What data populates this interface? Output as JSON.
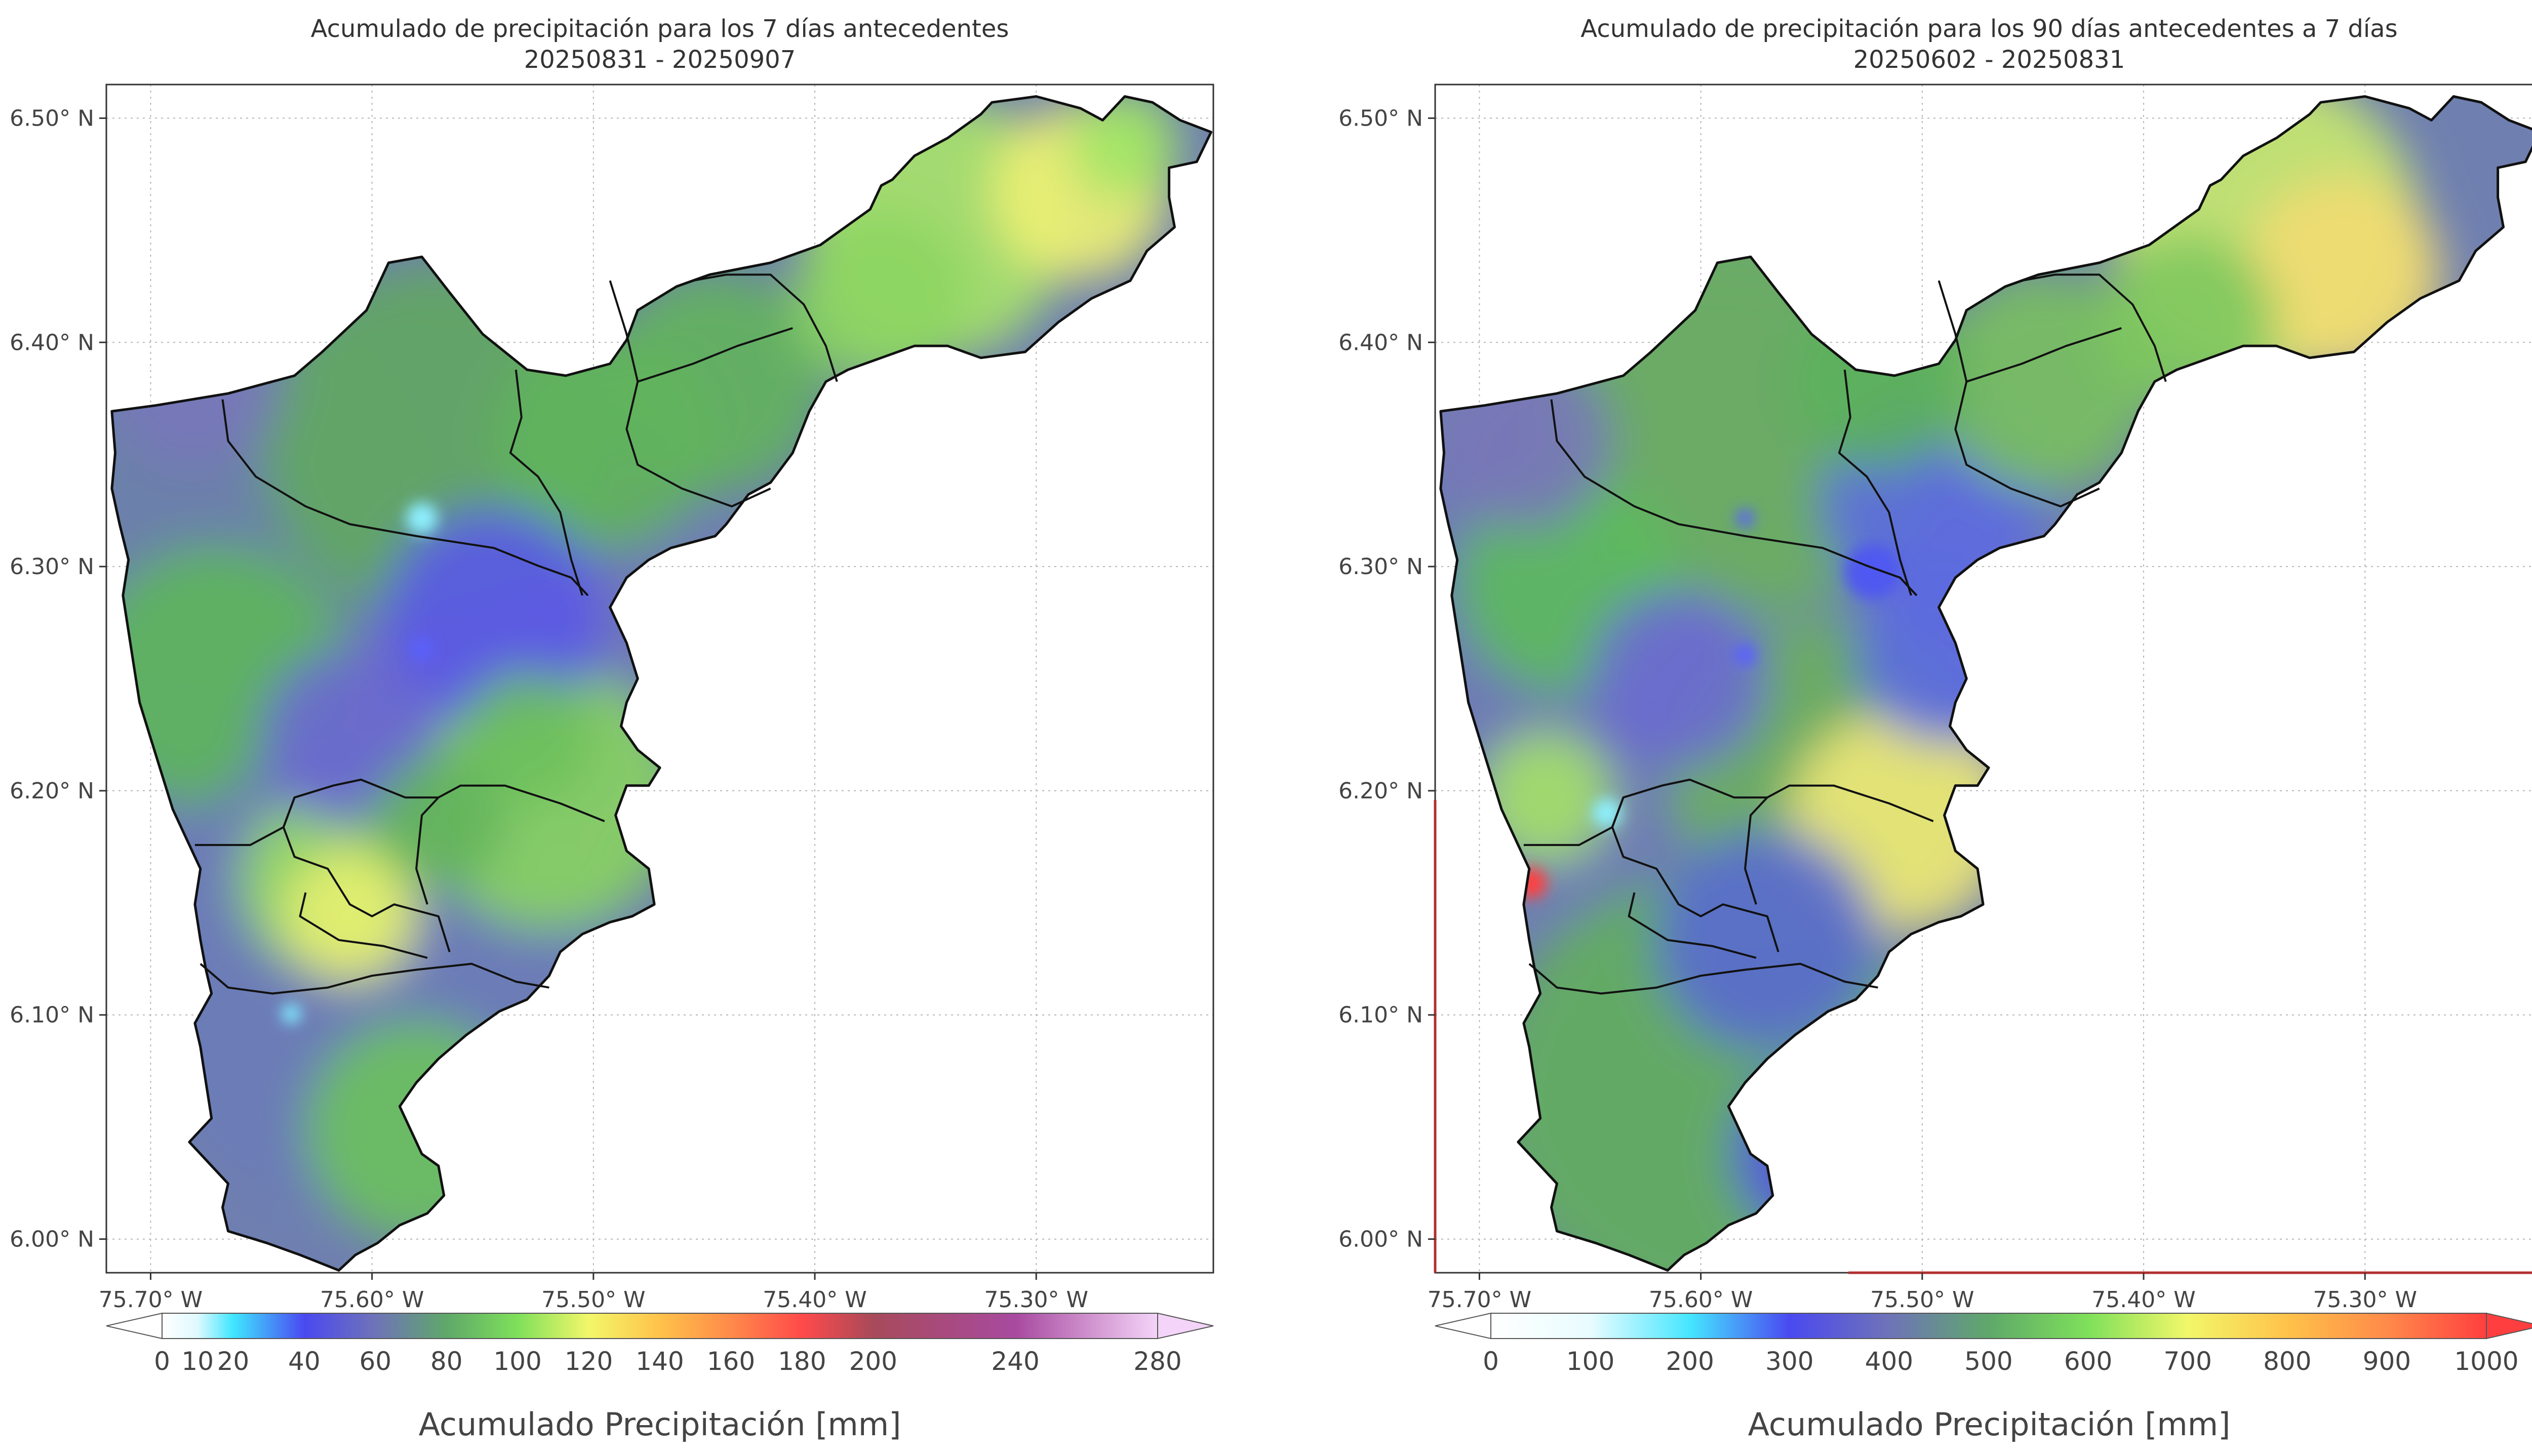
{
  "chart_data": [
    {
      "type": "heatmap",
      "title": "Acumulado de precipitación para los 7 días antecedentes",
      "subtitle": "20250831 - 20250907",
      "x_ticks": [
        "75.70° W",
        "75.60° W",
        "75.50° W",
        "75.40° W",
        "75.30° W"
      ],
      "x_values": [
        -75.7,
        -75.6,
        -75.5,
        -75.4,
        -75.3
      ],
      "y_ticks": [
        "6.50° N",
        "6.40° N",
        "6.30° N",
        "6.20° N",
        "6.10° N",
        "6.00° N"
      ],
      "y_values": [
        6.5,
        6.4,
        6.3,
        6.2,
        6.1,
        6.0
      ],
      "xlim": [
        -75.72,
        -75.22
      ],
      "ylim": [
        5.985,
        6.515
      ],
      "grid": true,
      "colorbar": {
        "label": "Acumulado Precipitación [mm]",
        "ticks": [
          0,
          10,
          20,
          40,
          60,
          80,
          100,
          120,
          140,
          160,
          180,
          200,
          240,
          280
        ],
        "tick_labels": [
          "0",
          "10",
          "20",
          "40",
          "60",
          "80",
          "100",
          "120",
          "140",
          "160",
          "180",
          "200",
          "240",
          "280"
        ],
        "range": [
          0,
          280
        ],
        "extend": "both",
        "stops": [
          {
            "v": 0,
            "c": "#ffffff"
          },
          {
            "v": 10,
            "c": "#dff9ff"
          },
          {
            "v": 20,
            "c": "#3fe6ff"
          },
          {
            "v": 40,
            "c": "#4a49f0"
          },
          {
            "v": 60,
            "c": "#6f73b8"
          },
          {
            "v": 80,
            "c": "#5fa86a"
          },
          {
            "v": 100,
            "c": "#7fe05a"
          },
          {
            "v": 120,
            "c": "#f2f76a"
          },
          {
            "v": 140,
            "c": "#ffc24a"
          },
          {
            "v": 160,
            "c": "#ff8a4a"
          },
          {
            "v": 180,
            "c": "#ff4a4a"
          },
          {
            "v": 200,
            "c": "#a84a5a"
          },
          {
            "v": 240,
            "c": "#a84aa0"
          },
          {
            "v": 280,
            "c": "#f4d4f8"
          }
        ]
      },
      "colors": {
        "bg": "#6f7fb0",
        "green": "#6cc85a",
        "light_green": "#a6e868",
        "yellow": "#eef276",
        "blue": "#4b50ee",
        "cyan": "#8ef0ff"
      }
    },
    {
      "type": "heatmap",
      "title": "Acumulado de precipitación para los 90 días antecedentes a 7 días",
      "subtitle": "20250602 - 20250831",
      "x_ticks": [
        "75.70° W",
        "75.60° W",
        "75.50° W",
        "75.40° W",
        "75.30° W"
      ],
      "x_values": [
        -75.7,
        -75.6,
        -75.5,
        -75.4,
        -75.3
      ],
      "y_ticks": [
        "6.50° N",
        "6.40° N",
        "6.30° N",
        "6.20° N",
        "6.10° N",
        "6.00° N"
      ],
      "y_values": [
        6.5,
        6.4,
        6.3,
        6.2,
        6.1,
        6.0
      ],
      "xlim": [
        -75.72,
        -75.22
      ],
      "ylim": [
        5.985,
        6.515
      ],
      "grid": true,
      "colorbar": {
        "label": "Acumulado Precipitación [mm]",
        "ticks": [
          0,
          100,
          200,
          300,
          400,
          500,
          600,
          700,
          800,
          900,
          1000
        ],
        "tick_labels": [
          "0",
          "100",
          "200",
          "300",
          "400",
          "500",
          "600",
          "700",
          "800",
          "900",
          "1000"
        ],
        "range": [
          0,
          1000
        ],
        "extend": "both",
        "stops": [
          {
            "v": 0,
            "c": "#ffffff"
          },
          {
            "v": 100,
            "c": "#e8fcff"
          },
          {
            "v": 200,
            "c": "#45e6ff"
          },
          {
            "v": 300,
            "c": "#4a49f0"
          },
          {
            "v": 400,
            "c": "#6f73b8"
          },
          {
            "v": 500,
            "c": "#5fa86a"
          },
          {
            "v": 600,
            "c": "#7fe05a"
          },
          {
            "v": 700,
            "c": "#f2f76a"
          },
          {
            "v": 800,
            "c": "#ffc24a"
          },
          {
            "v": 900,
            "c": "#ff8a4a"
          },
          {
            "v": 1000,
            "c": "#ff3f3f"
          }
        ]
      },
      "colors": {
        "bg": "#6f7fb0",
        "green": "#6cc85a",
        "light_green": "#a6e868",
        "yellow": "#f0e070",
        "blue": "#4b50ee",
        "cyan": "#8ef0ff",
        "red": "#ff3f3f",
        "border_red": "#b03030"
      }
    }
  ]
}
